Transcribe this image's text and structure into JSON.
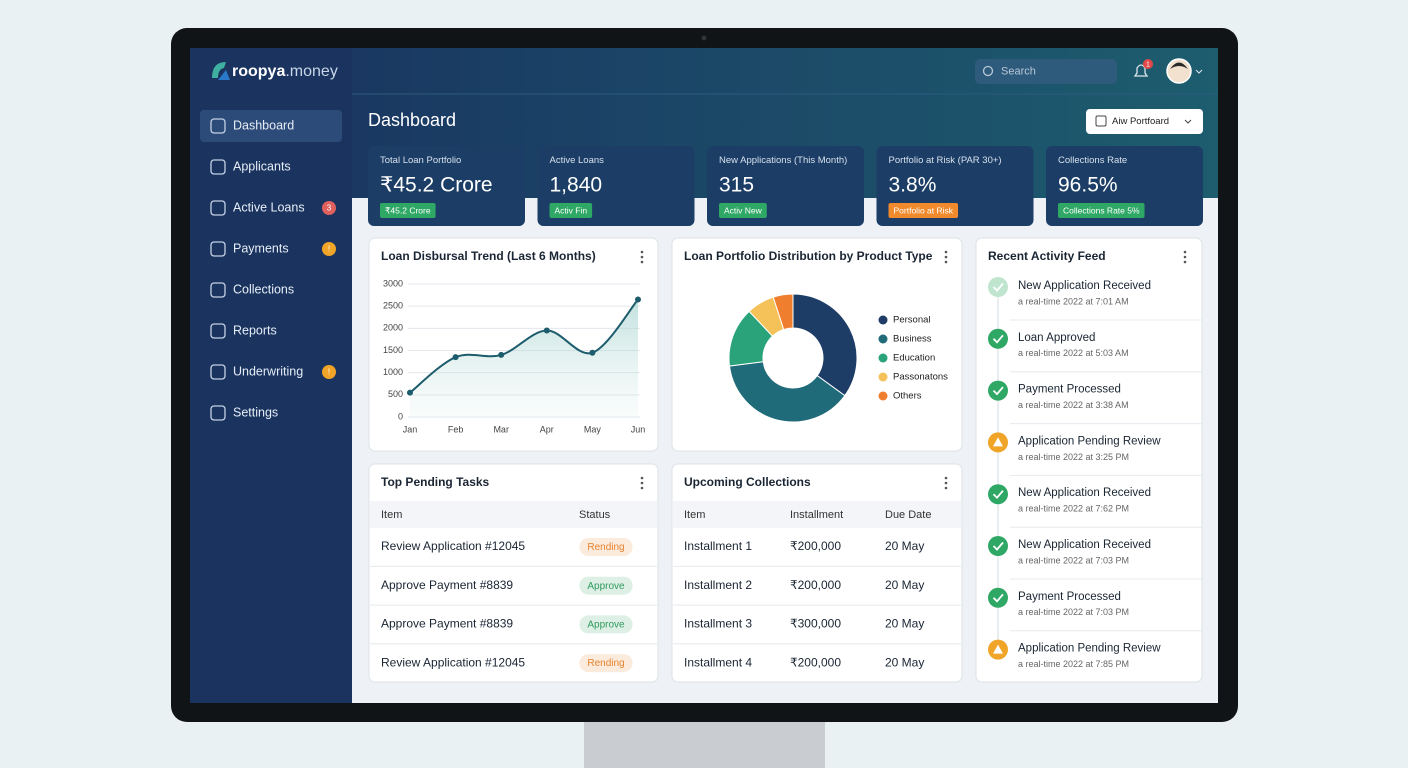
{
  "brand": {
    "name": "roopya",
    "suffix": ".money"
  },
  "nav": [
    {
      "label": "Dashboard",
      "active": true
    },
    {
      "label": "Applicants"
    },
    {
      "label": "Active Loans",
      "badge": "3",
      "badge_color": "#e0605e"
    },
    {
      "label": "Payments",
      "badge": "!",
      "badge_color": "#f0a428"
    },
    {
      "label": "Collections"
    },
    {
      "label": "Reports"
    },
    {
      "label": "Underwriting",
      "badge": "!",
      "badge_color": "#f0a428"
    },
    {
      "label": "Settings"
    }
  ],
  "header": {
    "search_placeholder": "Search",
    "notification_count": 1,
    "page_title": "Dashboard",
    "filter": "Aiw Portfoard"
  },
  "kpis": [
    {
      "label": "Total Loan Portfolio",
      "value": "₹45.2 Crore",
      "tag": "₹45.2 Crore",
      "tag_color": "#2fa866"
    },
    {
      "label": "Active Loans",
      "value": "1,840",
      "tag": "Activ Fin",
      "tag_color": "#2fa866"
    },
    {
      "label": "New Applications (This Month)",
      "value": "315",
      "tag": "Activ New",
      "tag_color": "#2fa866"
    },
    {
      "label": "Portfolio at Risk (PAR 30+)",
      "value": "3.8%",
      "tag": "Portfolio at Risk",
      "tag_color": "#f08a2c"
    },
    {
      "label": "Collections Rate",
      "value": "96.5%",
      "tag": "Collections Rate 5%",
      "tag_color": "#2fa866"
    }
  ],
  "chart_data": [
    {
      "type": "line",
      "title": "Loan Disbursal Trend (Last 6 Months)",
      "categories": [
        "Jan",
        "Feb",
        "Mar",
        "Apr",
        "May",
        "Jun"
      ],
      "values": [
        550,
        1350,
        1400,
        1950,
        1450,
        2650
      ],
      "color": "#1d5c6c",
      "ylim": [
        0,
        3000
      ],
      "yticks": [
        0,
        500,
        1000,
        1500,
        2000,
        2500,
        3000
      ],
      "grid": true
    },
    {
      "type": "pie",
      "title": "Loan Portfolio Distribution by Product Type",
      "categories": [
        "Personal",
        "Business",
        "Education",
        "Passonatons",
        "Others"
      ],
      "values": [
        35,
        38,
        15,
        7,
        5
      ],
      "colors": [
        "#1d3d66",
        "#1f6b7a",
        "#2aa37a",
        "#f5c25a",
        "#ef7f2e"
      ],
      "legend": "right"
    }
  ],
  "tasks": {
    "title": "Top Pending Tasks",
    "columns": [
      "Item",
      "Status"
    ],
    "rows": [
      {
        "item": "Review Application #12045",
        "status": "Rending",
        "color": "#e8822c"
      },
      {
        "item": "Approve Payment #8839",
        "status": "Approve",
        "color": "#2f9a5e"
      },
      {
        "item": "Approve Payment #8839",
        "status": "Approve",
        "color": "#2f9a5e"
      },
      {
        "item": "Review Application #12045",
        "status": "Rending",
        "color": "#e8822c"
      }
    ]
  },
  "collections": {
    "title": "Upcoming Collections",
    "columns": [
      "Item",
      "Installment",
      "Due Date"
    ],
    "rows": [
      [
        "Installment 1",
        "₹200,000",
        "20 May"
      ],
      [
        "Installment 2",
        "₹200,000",
        "20 May"
      ],
      [
        "Installment 3",
        "₹300,000",
        "20 May"
      ],
      [
        "Installment 4",
        "₹200,000",
        "20 May"
      ]
    ]
  },
  "activity": {
    "title": "Recent Activity Feed",
    "items": [
      {
        "title": "New Application Received",
        "time": "a real-time 2022 at 7:01 AM",
        "color": "#bfe5cf"
      },
      {
        "title": "Loan Approved",
        "time": "a real-time 2022 at 5:03 AM",
        "color": "#2fa866"
      },
      {
        "title": "Payment Processed",
        "time": "a real-time 2022 at 3:38 AM",
        "color": "#2fa866"
      },
      {
        "title": "Application Pending Review",
        "time": "a real-time 2022 at 3:25 PM",
        "color": "#f0a428"
      },
      {
        "title": "New Application Received",
        "time": "a real-time 2022 at 7:62 PM",
        "color": "#2fa866"
      },
      {
        "title": "New Application Received",
        "time": "a real-time 2022 at 7:03 PM",
        "color": "#2fa866"
      },
      {
        "title": "Payment Processed",
        "time": "a real-time 2022 at 7:03 PM",
        "color": "#2fa866"
      },
      {
        "title": "Application Pending Review",
        "time": "a real-time 2022 at 7:85 PM",
        "color": "#f0a428"
      }
    ]
  }
}
